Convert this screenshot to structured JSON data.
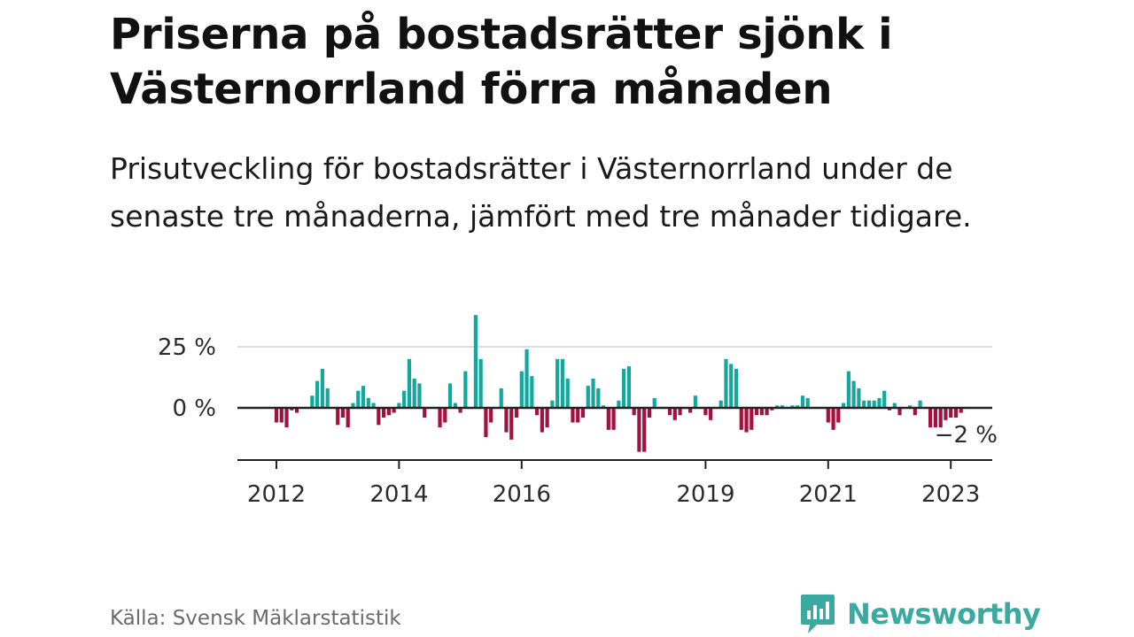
{
  "title": "Priserna på bostadsrätter sjönk i Västernorrland förra månaden",
  "subtitle": "Prisutveckling för bostadsrätter i Västernorrland under de senaste tre månaderna, jämfört med tre månader tidigare.",
  "source": "Källa: Svensk Mäklarstatistik",
  "logo": {
    "text": "Newsworthy",
    "icon": "newsworthy-bars-icon"
  },
  "colors": {
    "positive": "#13a89e",
    "negative": "#a3123f",
    "grid": "#dddddd",
    "axis": "#222222",
    "brand": "#3aa9a0"
  },
  "chart_data": {
    "type": "bar",
    "title": "",
    "xlabel": "",
    "ylabel": "",
    "ylim": [
      -20,
      40
    ],
    "yticks": [
      {
        "value": 0,
        "label": "0 %"
      },
      {
        "value": 25,
        "label": "25 %"
      }
    ],
    "xticks": [
      {
        "value": "2012-01",
        "label": "2012"
      },
      {
        "value": "2014-01",
        "label": "2014"
      },
      {
        "value": "2016-01",
        "label": "2016"
      },
      {
        "value": "2019-01",
        "label": "2019"
      },
      {
        "value": "2021-01",
        "label": "2021"
      },
      {
        "value": "2023-01",
        "label": "2023"
      }
    ],
    "last_value_label": "−2 %",
    "series": [
      {
        "start": "2012-01",
        "frequency": "monthly",
        "values": [
          -6,
          -6,
          -8,
          -1,
          -2,
          0,
          0,
          5,
          11,
          16,
          8,
          0,
          -7,
          -4,
          -8,
          2,
          7,
          9,
          4,
          2,
          -7,
          -4,
          -3,
          -2,
          2,
          7,
          20,
          12,
          10,
          -4,
          0,
          0,
          -8,
          -6,
          10,
          2,
          -2,
          15,
          0,
          38,
          20,
          -12,
          -6,
          0,
          8,
          -10,
          -13,
          -4,
          15,
          24,
          13,
          -3,
          -10,
          -8,
          3,
          20,
          20,
          12,
          -6,
          -6,
          -4,
          9,
          12,
          8,
          1,
          -9,
          -9,
          3,
          16,
          17,
          -3,
          -18,
          -18,
          -4,
          4,
          0,
          0,
          -3,
          -5,
          -3,
          0,
          -2,
          5,
          0,
          -3,
          -5,
          0,
          3,
          20,
          18,
          16,
          -9,
          -10,
          -9,
          -3,
          -3,
          -3,
          -1,
          1,
          1,
          0,
          1,
          1,
          5,
          4,
          0,
          0,
          0,
          -6,
          -9,
          -6,
          2,
          15,
          11,
          8,
          3,
          3,
          3,
          4,
          7,
          -1,
          2,
          -3,
          0,
          1,
          -3,
          3,
          0,
          -8,
          -8,
          -8,
          -5,
          -4,
          -4,
          -2
        ]
      }
    ]
  }
}
